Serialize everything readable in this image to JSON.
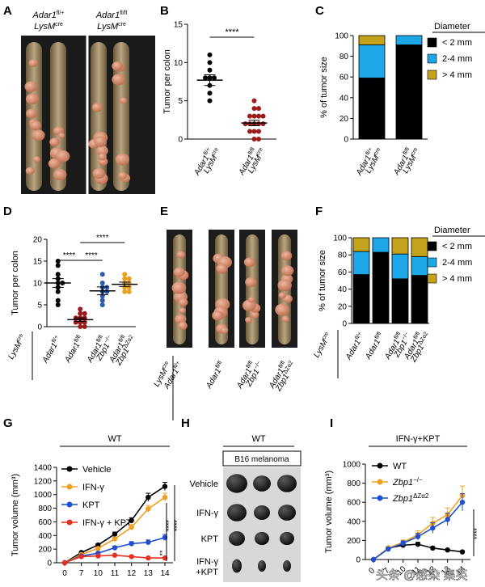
{
  "figure": {
    "panel_letters": [
      "A",
      "B",
      "C",
      "D",
      "E",
      "F",
      "G",
      "H",
      "I"
    ],
    "genotype_header": {
      "left_gene": "Adar1",
      "left_sup": "fl/+",
      "right_gene": "Adar1",
      "right_sup": "fl/fl",
      "lysm": "LysM",
      "lysm_sup": "cre"
    },
    "significance": "****",
    "watermark": "头条 @感染 集英",
    "h_labels": {
      "wt": "WT",
      "model": "B16 melanoma",
      "rows": [
        "Vehicle",
        "IFN-γ",
        "KPT",
        "IFN-γ",
        "+KPT"
      ]
    },
    "e_labels": {
      "lysm": "LysM",
      "lysm_sup": "cre",
      "cols": [
        {
          "gene": "Adar1",
          "sup": "fl/+"
        },
        {
          "gene": "Adar1",
          "sup": "fl/fl"
        },
        {
          "gene": "Adar1",
          "sup": "fl/fl",
          "gene2": "Zbp1",
          "sup2": "−/−"
        },
        {
          "gene": "Adar1",
          "sup": "fl/fl",
          "gene2": "Zbp1",
          "sup2": "ΔZα2"
        }
      ]
    }
  },
  "chart_data": [
    {
      "panel": "B",
      "type": "scatter",
      "ylabel": "Tumor per colon",
      "ylim": [
        0,
        15
      ],
      "yticks": [
        0,
        5,
        10,
        15
      ],
      "groups": [
        {
          "gene": "Adar1",
          "sup": "fl/+",
          "lysm": "LysM",
          "lysm_sup": "cre",
          "color": "#000000",
          "mean": 7.7,
          "sem": 0.7,
          "values": [
            11,
            10,
            9,
            8,
            8,
            8,
            7,
            6,
            5
          ]
        },
        {
          "gene": "Adar1",
          "sup": "fl/fl",
          "lysm": "LysM",
          "lysm_sup": "cre",
          "color": "#9b1c1c",
          "mean": 2.1,
          "sem": 0.35,
          "values": [
            5,
            4,
            4,
            3,
            3,
            3,
            3,
            2,
            2,
            2,
            2,
            2,
            1,
            1,
            1,
            0,
            0
          ]
        }
      ],
      "significance": "****"
    },
    {
      "panel": "C",
      "type": "bar",
      "stacked": true,
      "ylabel": "% of tumor size",
      "ylim": [
        0,
        100
      ],
      "yticks": [
        0,
        20,
        40,
        60,
        80,
        100
      ],
      "categories": [
        {
          "gene": "Adar1",
          "sup": "fl/+",
          "lysm": "LysM",
          "lysm_sup": "cre"
        },
        {
          "gene": "Adar1",
          "sup": "fl/fl",
          "lysm": "LysM",
          "lysm_sup": "cre"
        }
      ],
      "legend_title": "Diameter",
      "series": [
        {
          "name": "< 2 mm",
          "color": "#000000",
          "values": [
            59,
            91
          ]
        },
        {
          "name": "2-4 mm",
          "color": "#1ea7e8",
          "values": [
            32,
            9
          ]
        },
        {
          "name": "> 4 mm",
          "color": "#c4a21c",
          "values": [
            9,
            0
          ]
        }
      ]
    },
    {
      "panel": "D",
      "type": "scatter",
      "ylabel": "Tumor per colon",
      "ylim": [
        0,
        20
      ],
      "yticks": [
        0,
        5,
        10,
        15,
        20
      ],
      "lysm": "LysM",
      "lysm_sup": "cre",
      "groups": [
        {
          "gene": "Adar1",
          "sup": "fl/+",
          "color": "#000000",
          "mean": 10,
          "sem": 1,
          "values": [
            15,
            14,
            12,
            11,
            10,
            10,
            9,
            8,
            6,
            5
          ]
        },
        {
          "gene": "Adar1",
          "sup": "fl/fl",
          "color": "#9b1c1c",
          "mean": 1.6,
          "sem": 0.4,
          "values": [
            4,
            3,
            3,
            2,
            2,
            2,
            1,
            1,
            1,
            0,
            0
          ]
        },
        {
          "gene": "Adar1",
          "sup": "fl/fl",
          "gene2": "Zbp1",
          "sup2": "−/−",
          "color": "#2f5aa8",
          "mean": 8.2,
          "sem": 0.9,
          "values": [
            12,
            10,
            9,
            9,
            8,
            8,
            7,
            6,
            5
          ]
        },
        {
          "gene": "Adar1",
          "sup": "fl/fl",
          "gene2": "Zbp1",
          "sup2": "ΔZα2",
          "color": "#e8a020",
          "mean": 9.7,
          "sem": 0.5,
          "values": [
            12,
            11,
            11,
            10,
            10,
            9,
            9,
            8,
            8
          ]
        }
      ],
      "brackets": [
        {
          "from": 0,
          "to": 1,
          "label": "****",
          "level": 0
        },
        {
          "from": 1,
          "to": 2,
          "label": "****",
          "level": 0
        },
        {
          "from": 1,
          "to": 3,
          "label": "****",
          "level": 1
        }
      ]
    },
    {
      "panel": "F",
      "type": "bar",
      "stacked": true,
      "ylabel": "% of tumor size",
      "ylim": [
        0,
        100
      ],
      "yticks": [
        0,
        20,
        40,
        60,
        80,
        100
      ],
      "lysm": "LysM",
      "lysm_sup": "cre",
      "categories": [
        {
          "gene": "Adar1",
          "sup": "fl/+"
        },
        {
          "gene": "Adar1",
          "sup": "fl/fl"
        },
        {
          "gene": "Adar1",
          "sup": "fl/fl",
          "gene2": "Zbp1",
          "sup2": "−/−"
        },
        {
          "gene": "Adar1",
          "sup": "fl/fl",
          "gene2": "Zbp1",
          "sup2": "ΔZα2"
        }
      ],
      "legend_title": "Diameter",
      "series": [
        {
          "name": "< 2 mm",
          "color": "#000000",
          "values": [
            57,
            83,
            52,
            56
          ]
        },
        {
          "name": "2-4 mm",
          "color": "#1ea7e8",
          "values": [
            27,
            17,
            29,
            22
          ]
        },
        {
          "name": "> 4 mm",
          "color": "#c4a21c",
          "values": [
            16,
            0,
            19,
            22
          ]
        }
      ]
    },
    {
      "panel": "G",
      "type": "line",
      "title": "WT",
      "ylabel": "Tumor volume (mm³)",
      "ylim": [
        0,
        1400
      ],
      "yticks": [
        0,
        200,
        400,
        600,
        800,
        1000,
        1200,
        1400
      ],
      "x": [
        0,
        7,
        10,
        11,
        12,
        13,
        14
      ],
      "series": [
        {
          "name": "Vehicle",
          "color": "#000000",
          "values": [
            0,
            150,
            260,
            420,
            620,
            960,
            1120
          ],
          "err": [
            0,
            10,
            20,
            30,
            40,
            60,
            60
          ]
        },
        {
          "name": "IFN-γ",
          "color": "#f0a020",
          "values": [
            0,
            120,
            210,
            350,
            520,
            790,
            960
          ],
          "err": [
            0,
            10,
            20,
            25,
            40,
            50,
            60
          ]
        },
        {
          "name": "KPT",
          "color": "#1f4fd0",
          "values": [
            0,
            100,
            140,
            220,
            280,
            300,
            370
          ],
          "err": [
            0,
            10,
            15,
            25,
            30,
            35,
            45
          ]
        },
        {
          "name": "IFN-γ + KPT",
          "color": "#e83020",
          "values": [
            0,
            90,
            100,
            110,
            90,
            70,
            70
          ],
          "err": [
            0,
            8,
            10,
            12,
            10,
            8,
            8
          ]
        }
      ],
      "significance": [
        "****",
        "****",
        "**"
      ]
    },
    {
      "panel": "I",
      "type": "line",
      "title": "IFN-γ+KPT",
      "ylabel": "Tumor volume (mm³)",
      "ylim": [
        0,
        1000
      ],
      "yticks": [
        0,
        200,
        400,
        600,
        800,
        1000
      ],
      "x": [
        0,
        7,
        10,
        11,
        12,
        13,
        14
      ],
      "series": [
        {
          "name": "WT",
          "color": "#000000",
          "values": [
            0,
            120,
            150,
            160,
            120,
            100,
            80
          ],
          "err": [
            0,
            15,
            20,
            20,
            15,
            10,
            10
          ]
        },
        {
          "name": "Zbp1",
          "sup": "−/−",
          "color": "#f0a020",
          "values": [
            0,
            120,
            180,
            260,
            380,
            470,
            670
          ],
          "err": [
            0,
            15,
            25,
            40,
            60,
            70,
            100
          ]
        },
        {
          "name": "Zbp1",
          "sup": "ΔZα2",
          "color": "#1f4fd0",
          "values": [
            0,
            110,
            170,
            240,
            330,
            420,
            600
          ],
          "err": [
            0,
            15,
            25,
            35,
            55,
            65,
            90
          ]
        }
      ],
      "significance": "****"
    }
  ]
}
